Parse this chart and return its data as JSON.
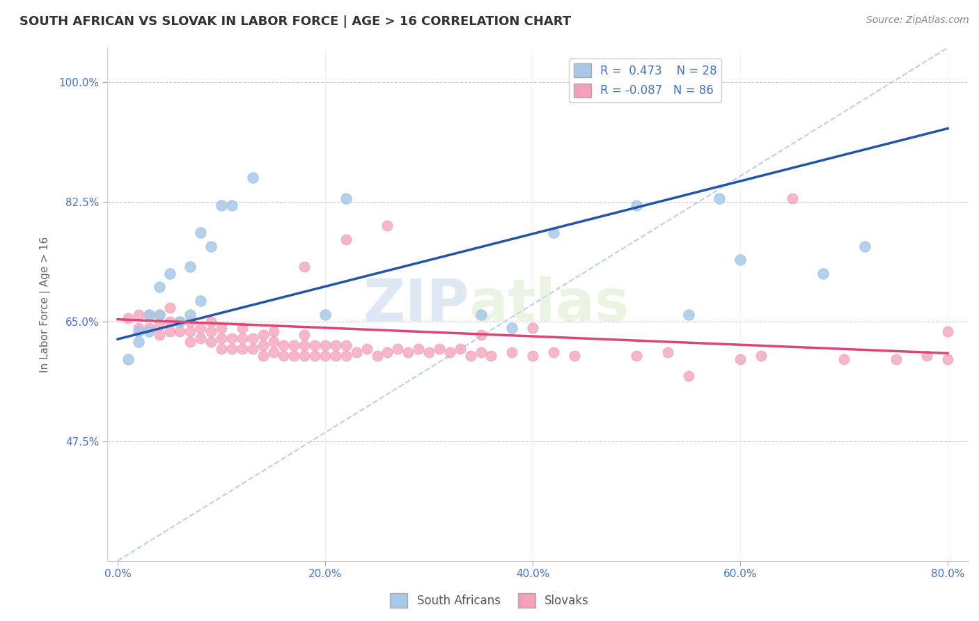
{
  "title": "SOUTH AFRICAN VS SLOVAK IN LABOR FORCE | AGE > 16 CORRELATION CHART",
  "source_text": "Source: ZipAtlas.com",
  "ylabel": "In Labor Force | Age > 16",
  "xlim": [
    -0.01,
    0.82
  ],
  "ylim": [
    0.3,
    1.05
  ],
  "yticks": [
    0.475,
    0.65,
    0.825,
    1.0
  ],
  "ytick_labels": [
    "47.5%",
    "65.0%",
    "82.5%",
    "100.0%"
  ],
  "xticks": [
    0.0,
    0.2,
    0.4,
    0.6,
    0.8
  ],
  "xtick_labels": [
    "0.0%",
    "20.0%",
    "40.0%",
    "60.0%",
    "80.0%"
  ],
  "blue_R": 0.473,
  "blue_N": 28,
  "pink_R": -0.087,
  "pink_N": 86,
  "blue_color": "#a8c8e8",
  "pink_color": "#f4a0b8",
  "blue_line_color": "#2255aa",
  "pink_line_color": "#dd4477",
  "watermark_text1": "ZIP",
  "watermark_text2": "atlas",
  "legend_label_blue": "South Africans",
  "legend_label_pink": "Slovaks",
  "blue_scatter_x": [
    0.01,
    0.02,
    0.02,
    0.03,
    0.03,
    0.04,
    0.04,
    0.05,
    0.06,
    0.07,
    0.07,
    0.08,
    0.08,
    0.09,
    0.1,
    0.11,
    0.13,
    0.2,
    0.22,
    0.35,
    0.38,
    0.42,
    0.5,
    0.55,
    0.58,
    0.6,
    0.68,
    0.72
  ],
  "blue_scatter_y": [
    0.595,
    0.62,
    0.635,
    0.635,
    0.66,
    0.66,
    0.7,
    0.72,
    0.65,
    0.66,
    0.73,
    0.78,
    0.68,
    0.76,
    0.82,
    0.82,
    0.86,
    0.66,
    0.83,
    0.66,
    0.64,
    0.78,
    0.82,
    0.66,
    0.83,
    0.74,
    0.72,
    0.76
  ],
  "pink_scatter_x": [
    0.01,
    0.02,
    0.02,
    0.03,
    0.03,
    0.04,
    0.04,
    0.04,
    0.05,
    0.05,
    0.05,
    0.06,
    0.06,
    0.07,
    0.07,
    0.07,
    0.08,
    0.08,
    0.09,
    0.09,
    0.09,
    0.1,
    0.1,
    0.1,
    0.11,
    0.11,
    0.12,
    0.12,
    0.12,
    0.13,
    0.13,
    0.14,
    0.14,
    0.14,
    0.15,
    0.15,
    0.15,
    0.16,
    0.16,
    0.17,
    0.17,
    0.18,
    0.18,
    0.18,
    0.19,
    0.19,
    0.2,
    0.2,
    0.21,
    0.21,
    0.22,
    0.22,
    0.23,
    0.24,
    0.25,
    0.26,
    0.27,
    0.28,
    0.29,
    0.3,
    0.31,
    0.32,
    0.33,
    0.34,
    0.35,
    0.36,
    0.38,
    0.4,
    0.42,
    0.44,
    0.5,
    0.53,
    0.6,
    0.62,
    0.65,
    0.7,
    0.75,
    0.78,
    0.8,
    0.8,
    0.18,
    0.22,
    0.26,
    0.35,
    0.4,
    0.55
  ],
  "pink_scatter_y": [
    0.655,
    0.64,
    0.66,
    0.64,
    0.66,
    0.63,
    0.645,
    0.66,
    0.635,
    0.65,
    0.67,
    0.635,
    0.65,
    0.62,
    0.635,
    0.65,
    0.625,
    0.64,
    0.62,
    0.635,
    0.65,
    0.61,
    0.625,
    0.64,
    0.61,
    0.625,
    0.61,
    0.625,
    0.64,
    0.61,
    0.625,
    0.6,
    0.615,
    0.63,
    0.605,
    0.62,
    0.635,
    0.6,
    0.615,
    0.6,
    0.615,
    0.6,
    0.615,
    0.63,
    0.6,
    0.615,
    0.6,
    0.615,
    0.6,
    0.615,
    0.6,
    0.615,
    0.605,
    0.61,
    0.6,
    0.605,
    0.61,
    0.605,
    0.61,
    0.605,
    0.61,
    0.605,
    0.61,
    0.6,
    0.605,
    0.6,
    0.605,
    0.6,
    0.605,
    0.6,
    0.6,
    0.605,
    0.595,
    0.6,
    0.83,
    0.595,
    0.595,
    0.6,
    0.635,
    0.595,
    0.73,
    0.77,
    0.79,
    0.63,
    0.64,
    0.57
  ],
  "background_color": "#ffffff",
  "grid_color": "#cccccc",
  "title_color": "#333333",
  "axis_label_color": "#666666",
  "tick_label_color": "#4472C4",
  "diag_color": "#aac4e8",
  "blue_line_intercept": 0.624,
  "blue_line_slope": 0.385,
  "pink_line_intercept": 0.653,
  "pink_line_slope": -0.062
}
